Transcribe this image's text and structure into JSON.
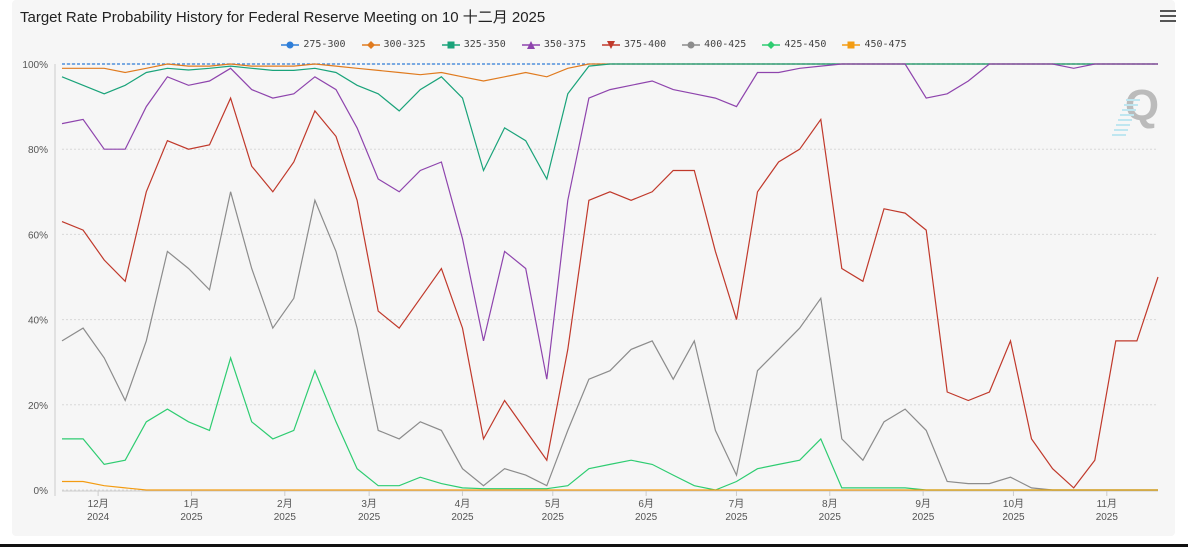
{
  "chart_data": {
    "type": "line",
    "title": "Target Rate Probability History for Federal Reserve Meeting on 10 十二月 2025",
    "xlabel": "",
    "ylabel": "",
    "ylim": [
      0,
      100
    ],
    "yticks": [
      "0%",
      "20%",
      "40%",
      "60%",
      "80%",
      "100%"
    ],
    "xticks": [
      {
        "date": "2024-12-01",
        "month": "12月",
        "year": "2024"
      },
      {
        "date": "2025-01-01",
        "month": "1月",
        "year": "2025"
      },
      {
        "date": "2025-02-01",
        "month": "2月",
        "year": "2025"
      },
      {
        "date": "2025-03-01",
        "month": "3月",
        "year": "2025"
      },
      {
        "date": "2025-04-01",
        "month": "4月",
        "year": "2025"
      },
      {
        "date": "2025-05-01",
        "month": "5月",
        "year": "2025"
      },
      {
        "date": "2025-06-01",
        "month": "6月",
        "year": "2025"
      },
      {
        "date": "2025-07-01",
        "month": "7月",
        "year": "2025"
      },
      {
        "date": "2025-08-01",
        "month": "8月",
        "year": "2025"
      },
      {
        "date": "2025-09-01",
        "month": "9月",
        "year": "2025"
      },
      {
        "date": "2025-10-01",
        "month": "10月",
        "year": "2025"
      },
      {
        "date": "2025-11-01",
        "month": "11月",
        "year": "2025"
      }
    ],
    "xlim": [
      "2024-11-19",
      "2025-11-18"
    ],
    "grid": true,
    "legend": "top-center",
    "x": [
      "2024-11-19",
      "2024-11-26",
      "2024-12-03",
      "2024-12-10",
      "2024-12-17",
      "2024-12-24",
      "2024-12-31",
      "2025-01-07",
      "2025-01-14",
      "2025-01-21",
      "2025-01-28",
      "2025-02-04",
      "2025-02-11",
      "2025-02-18",
      "2025-02-25",
      "2025-03-04",
      "2025-03-11",
      "2025-03-18",
      "2025-03-25",
      "2025-04-01",
      "2025-04-08",
      "2025-04-15",
      "2025-04-22",
      "2025-04-29",
      "2025-05-06",
      "2025-05-13",
      "2025-05-20",
      "2025-05-27",
      "2025-06-03",
      "2025-06-10",
      "2025-06-17",
      "2025-06-24",
      "2025-07-01",
      "2025-07-08",
      "2025-07-15",
      "2025-07-22",
      "2025-07-29",
      "2025-08-05",
      "2025-08-12",
      "2025-08-19",
      "2025-08-26",
      "2025-09-02",
      "2025-09-09",
      "2025-09-16",
      "2025-09-23",
      "2025-09-30",
      "2025-10-07",
      "2025-10-14",
      "2025-10-21",
      "2025-10-28",
      "2025-11-04",
      "2025-11-11",
      "2025-11-18"
    ],
    "series": [
      {
        "name": "275-300",
        "color": "#2f7ed8",
        "marker": "circle",
        "values": [
          100,
          100,
          100,
          100,
          100,
          100,
          100,
          100,
          100,
          100,
          100,
          100,
          100,
          100,
          100,
          100,
          100,
          100,
          100,
          100,
          100,
          100,
          100,
          100,
          100,
          100,
          100,
          100,
          100,
          100,
          100,
          100,
          100,
          100,
          100,
          100,
          100,
          100,
          100,
          100,
          100,
          100,
          100,
          100,
          100,
          100,
          100,
          100,
          100,
          100,
          100,
          100,
          100
        ]
      },
      {
        "name": "300-325",
        "color": "#e07b1f",
        "marker": "diamond",
        "values": [
          99,
          99,
          99,
          98,
          99,
          100,
          99.5,
          99.5,
          100,
          99.5,
          99.5,
          99.5,
          100,
          99.5,
          99,
          98.5,
          98,
          97.5,
          98,
          97,
          96,
          97,
          98,
          97,
          99,
          100,
          100,
          100,
          100,
          100,
          100,
          100,
          100,
          100,
          100,
          100,
          100,
          100,
          100,
          100,
          100,
          100,
          100,
          100,
          100,
          100,
          100,
          100,
          100,
          100,
          100,
          100,
          100
        ]
      },
      {
        "name": "325-350",
        "color": "#1aa37a",
        "marker": "square",
        "values": [
          97,
          95,
          93,
          95,
          98,
          99,
          98.6,
          99,
          99.5,
          99,
          98.5,
          98.5,
          99,
          98,
          95,
          93,
          89,
          94,
          97,
          92,
          75,
          85,
          82,
          73,
          93,
          99.5,
          100,
          100,
          100,
          100,
          100,
          100,
          100,
          100,
          100,
          100,
          100,
          100,
          100,
          100,
          100,
          100,
          100,
          100,
          100,
          100,
          100,
          100,
          100,
          100,
          100,
          100,
          100
        ]
      },
      {
        "name": "350-375",
        "color": "#8e44ad",
        "marker": "triangle",
        "values": [
          86,
          87,
          80,
          80,
          90,
          97,
          95,
          96,
          99,
          94,
          92,
          93,
          97,
          94,
          85,
          73,
          70,
          75,
          77,
          59,
          35,
          56,
          52,
          26,
          68,
          92,
          94,
          95,
          96,
          94,
          93,
          92,
          90,
          98,
          98,
          99,
          99.5,
          100,
          100,
          100,
          100,
          92,
          93,
          96,
          100,
          100,
          100,
          100,
          99,
          100,
          100,
          100,
          100
        ]
      },
      {
        "name": "375-400",
        "color": "#c0392b",
        "marker": "triangle-down",
        "values": [
          63,
          61,
          54,
          49,
          70,
          82,
          80,
          81,
          92,
          76,
          70,
          77,
          89,
          83,
          68,
          42,
          38,
          45,
          52,
          38,
          12,
          21,
          14,
          7,
          33,
          68,
          70,
          68,
          70,
          75,
          75,
          56,
          40,
          70,
          77,
          80,
          87,
          52,
          49,
          66,
          65,
          61,
          23,
          21,
          23,
          35,
          12,
          5,
          0.5,
          7,
          35,
          35,
          50
        ]
      },
      {
        "name": "400-425",
        "color": "#8c8c8c",
        "marker": "circle",
        "values": [
          35,
          38,
          31,
          21,
          35,
          56,
          52,
          47,
          70,
          52,
          38,
          45,
          68,
          56,
          38,
          14,
          12,
          16,
          14,
          5,
          1,
          5,
          3.5,
          1,
          14,
          26,
          28,
          33,
          35,
          26,
          35,
          14,
          3.5,
          28,
          33,
          38,
          45,
          12,
          7,
          16,
          19,
          14,
          2,
          1.5,
          1.5,
          3,
          0.5,
          0,
          0,
          0,
          0,
          0,
          0
        ]
      },
      {
        "name": "425-450",
        "color": "#2ecc71",
        "marker": "diamond",
        "values": [
          12,
          12,
          6,
          7,
          16,
          19,
          16,
          14,
          31,
          16,
          12,
          14,
          28,
          16,
          5,
          1,
          1,
          3,
          1.5,
          0.5,
          0.3,
          0.3,
          0.3,
          0.3,
          1,
          5,
          6,
          7,
          6,
          3.5,
          1,
          0,
          2,
          5,
          6,
          7,
          12,
          0.5,
          0.5,
          0.5,
          0.5,
          0,
          0,
          0,
          0,
          0,
          0,
          0,
          0,
          0,
          0,
          0,
          0
        ]
      },
      {
        "name": "450-475",
        "color": "#f39c12",
        "marker": "square",
        "values": [
          2,
          2,
          1,
          0.5,
          0,
          0,
          0,
          0,
          0,
          0,
          0,
          0,
          0,
          0,
          0,
          0,
          0,
          0,
          0,
          0,
          0,
          0,
          0,
          0,
          0,
          0,
          0,
          0,
          0,
          0,
          0,
          0,
          0,
          0,
          0,
          0,
          0,
          0,
          0,
          0,
          0,
          0,
          0,
          0,
          0,
          0,
          0,
          0,
          0,
          0,
          0,
          0,
          0
        ]
      }
    ]
  },
  "toolbar": {
    "menu_icon": "hamburger-menu-icon"
  },
  "watermark": {
    "text": "Q"
  }
}
